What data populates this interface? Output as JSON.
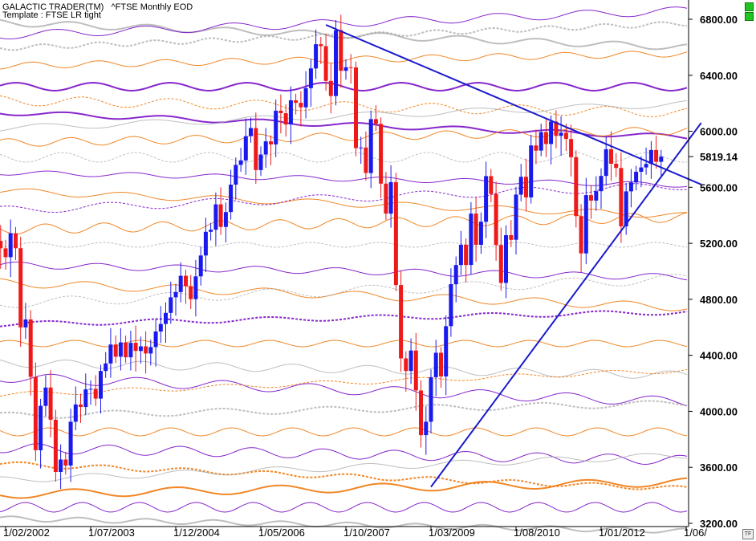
{
  "header": {
    "line1": "GALACTIC TRADER(TM)   ^FTSE Monthly EOD",
    "line2": "Template : FTSE LR tight"
  },
  "colors": {
    "up": "#1a1aee",
    "down": "#ee1a1a",
    "trendline": "#1a1acc",
    "wave_purple": "#7a10c8",
    "wave_orange": "#f07a10",
    "wave_gray": "#a8a8a8",
    "badge": "#22c322"
  },
  "chart_data": {
    "type": "candlestick",
    "instrument": "^FTSE",
    "period": "Monthly",
    "ylim": [
      3200,
      6900
    ],
    "yticks": [
      {
        "value": 6800,
        "label": "6800.00"
      },
      {
        "value": 6400,
        "label": "6400.00"
      },
      {
        "value": 6000,
        "label": "6000.00"
      },
      {
        "value": 5600,
        "label": "5600.00"
      },
      {
        "value": 5200,
        "label": "5200.00"
      },
      {
        "value": 4800,
        "label": "4800.00"
      },
      {
        "value": 4400,
        "label": "4400.00"
      },
      {
        "value": 4000,
        "label": "4000.00"
      },
      {
        "value": 3600,
        "label": "3600.00"
      },
      {
        "value": 3200,
        "label": "3200.00"
      }
    ],
    "last_price": {
      "value": 5819.14,
      "label": "5819.14"
    },
    "xticks": [
      "1/02/2002",
      "1/07/2003",
      "1/12/2004",
      "1/05/2006",
      "1/10/2007",
      "1/03/2009",
      "1/08/2010",
      "1/01/2012",
      "1/06/"
    ],
    "trendlines": [
      {
        "name": "resistance",
        "from": {
          "date": "2007-06",
          "price": 6760
        },
        "to": {
          "date": "2013-09",
          "price": 5620
        }
      },
      {
        "name": "support",
        "from": {
          "date": "2009-03",
          "price": 3460
        },
        "to": {
          "date": "2013-09",
          "price": 6060
        }
      }
    ],
    "close_series": {
      "start": "2001-11",
      "values": [
        5204,
        5217,
        5164,
        5101,
        5272,
        5165,
        4599,
        4656,
        4246,
        3722,
        4039,
        4170,
        3940,
        3567,
        3656,
        3613,
        3926,
        4049,
        4031,
        4157,
        4161,
        4091,
        4288,
        4342,
        4477,
        4390,
        4492,
        4386,
        4489,
        4431,
        4464,
        4413,
        4459,
        4570,
        4624,
        4703,
        4814,
        4852,
        4968,
        4894,
        4801,
        4964,
        5113,
        5282,
        5297,
        5478,
        5317,
        5423,
        5619,
        5760,
        5792,
        5965,
        6023,
        5723,
        5834,
        5928,
        5906,
        6147,
        6129,
        6049,
        6221,
        6203,
        6171,
        6308,
        6449,
        6622,
        6608,
        6360,
        6252,
        6722,
        6432,
        6457,
        6456,
        5880,
        5884,
        5702,
        6087,
        6053,
        5626,
        5412,
        5637,
        4902,
        4378,
        4288,
        4434,
        4149,
        3830,
        3926,
        4244,
        4418,
        4249,
        4608,
        4908,
        5045,
        5190,
        5045,
        5412,
        5189,
        5354,
        5680,
        5553,
        5188,
        4917,
        5258,
        5225,
        5548,
        5675,
        5528,
        5899,
        5862,
        5994,
        5909,
        6069,
        5967,
        5990,
        5945,
        5815,
        5394,
        5128,
        5544,
        5505,
        5572,
        5681,
        5872,
        5768,
        5738,
        5321,
        5571,
        5635,
        5711,
        5742,
        5767,
        5866,
        5782,
        5819
      ]
    }
  }
}
